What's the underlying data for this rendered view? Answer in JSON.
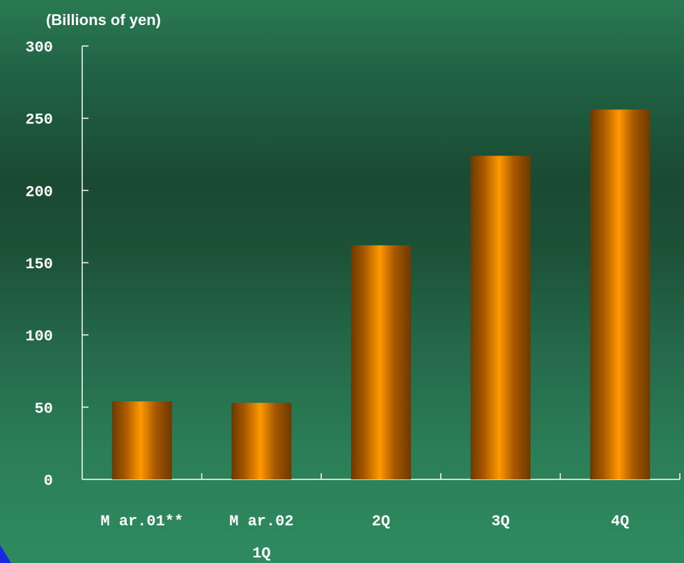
{
  "chart_data": {
    "type": "bar",
    "unit_label": "(Billions of yen)",
    "categories": [
      {
        "line1": "M ar.01**",
        "line2": ""
      },
      {
        "line1": "M ar.02",
        "line2": "1Q"
      },
      {
        "line1": "2Q",
        "line2": ""
      },
      {
        "line1": "3Q",
        "line2": ""
      },
      {
        "line1": "4Q",
        "line2": ""
      }
    ],
    "values": [
      54,
      53,
      162,
      224,
      256
    ],
    "ylim": [
      0,
      300
    ],
    "yticks": [
      0,
      50,
      100,
      150,
      200,
      250,
      300
    ],
    "grid": false,
    "legend": "none",
    "bar_colors": {
      "edge": "#6b3a00",
      "mid": "#a85800",
      "center": "#ff9900"
    }
  }
}
